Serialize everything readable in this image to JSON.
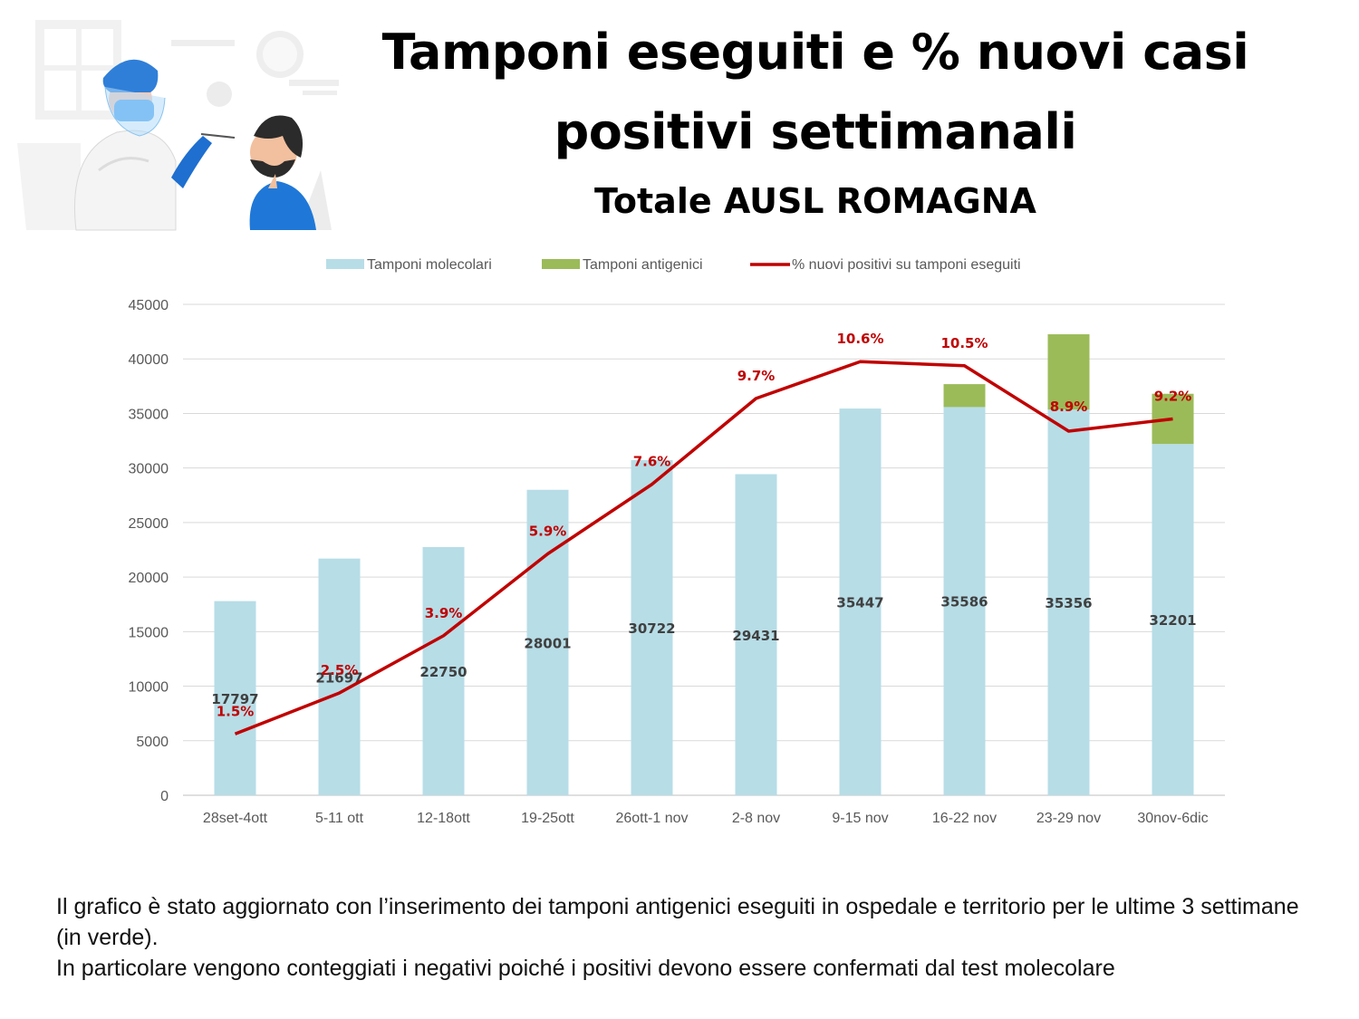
{
  "header": {
    "title": "Tamponi eseguiti e % nuovi casi positivi settimanali",
    "subtitle": "Totale AUSL ROMAGNA"
  },
  "illustration": {
    "icon": "swab-test-illustration"
  },
  "note": {
    "line1": "Il grafico è stato aggiornato con l’inserimento dei tamponi antigenici eseguiti in ospedale e territorio per le ultime 3 settimane (in verde).",
    "line2": "In particolare vengono conteggiati i negativi poiché i positivi devono essere confermati dal test molecolare"
  },
  "chart_data": {
    "type": "bar",
    "stacked": true,
    "categories": [
      "28set-4ott",
      "5-11 ott",
      "12-18ott",
      "19-25ott",
      "26ott-1 nov",
      "2-8 nov",
      "9-15 nov",
      "16-22 nov",
      "23-29 nov",
      "30nov-6dic"
    ],
    "series": [
      {
        "name": "Tamponi molecolari",
        "type": "bar",
        "color": "#b7dde7",
        "values": [
          17797,
          21697,
          22750,
          28001,
          30722,
          29431,
          35447,
          35586,
          35356,
          32201
        ],
        "labels": [
          "17797",
          "21697",
          "22750",
          "28001",
          "30722",
          "29431",
          "35447",
          "35586",
          "35356",
          "32201"
        ]
      },
      {
        "name": "Tamponi antigenici",
        "type": "bar",
        "color": "#9bbb59",
        "values": [
          0,
          0,
          0,
          0,
          0,
          0,
          0,
          2100,
          6900,
          4600
        ]
      },
      {
        "name": "% nuovi positivi su tamponi eseguiti",
        "type": "line",
        "color": "#c00000",
        "values": [
          1.5,
          2.5,
          3.9,
          5.9,
          7.6,
          9.7,
          10.6,
          10.5,
          8.9,
          9.2
        ],
        "labels": [
          "1.5%",
          "2.5%",
          "3.9%",
          "5.9%",
          "7.6%",
          "9.7%",
          "10.6%",
          "10.5%",
          "8.9%",
          "9.2%"
        ]
      }
    ],
    "yticks": [
      "0",
      "5000",
      "10000",
      "15000",
      "20000",
      "25000",
      "30000",
      "35000",
      "40000",
      "45000"
    ],
    "ylim": [
      0,
      45000
    ],
    "line_ylim": [
      0,
      12
    ],
    "grid": true,
    "legend_position": "top",
    "xlabel": "",
    "ylabel": ""
  }
}
